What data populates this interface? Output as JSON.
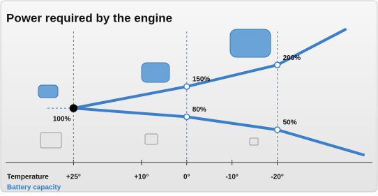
{
  "chart_data": {
    "type": "line",
    "title": "Power required by the engine",
    "xlabel": "Temperature",
    "xlim": [
      40,
      -41
    ],
    "xticks": [
      {
        "value": 25,
        "label": "+25°"
      },
      {
        "value": 10,
        "label": "+10°"
      },
      {
        "value": 0,
        "label": "0°"
      },
      {
        "value": -10,
        "label": "-10°"
      },
      {
        "value": -20,
        "label": "-20°"
      }
    ],
    "ylim": [
      -29,
      318
    ],
    "series": [
      {
        "color": "#3a7fc8",
        "x": [
          25,
          0,
          -20,
          -35
        ],
        "values": [
          100,
          150,
          200,
          282
        ],
        "value_labels": [
          "100%",
          "150%",
          "200%",
          null
        ]
      },
      {
        "name": "Battery capacity",
        "color": "#3a7fc8",
        "x": [
          25,
          0,
          -20,
          -39
        ],
        "values": [
          100,
          80,
          50,
          -8
        ],
        "value_labels": [
          null,
          "80%",
          "50%",
          null
        ]
      }
    ]
  }
}
